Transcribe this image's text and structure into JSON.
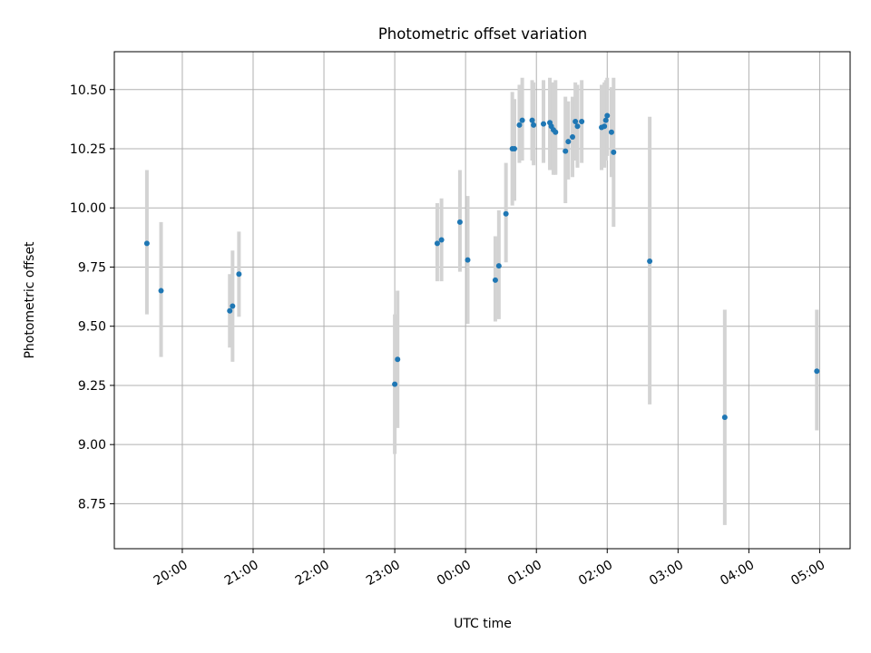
{
  "chart_data": {
    "type": "scatter",
    "title": "Photometric offset variation",
    "xlabel": "UTC time",
    "ylabel": "Photometric offset",
    "x_unit": "hours after 00:00 UTC (negative = previous day)",
    "xlim": [
      -4.96,
      5.43
    ],
    "ylim": [
      8.56,
      10.66
    ],
    "grid": true,
    "x_ticks": [
      {
        "value": -4,
        "label": "20:00"
      },
      {
        "value": -3,
        "label": "21:00"
      },
      {
        "value": -2,
        "label": "22:00"
      },
      {
        "value": -1,
        "label": "23:00"
      },
      {
        "value": 0,
        "label": "00:00"
      },
      {
        "value": 1,
        "label": "01:00"
      },
      {
        "value": 2,
        "label": "02:00"
      },
      {
        "value": 3,
        "label": "03:00"
      },
      {
        "value": 4,
        "label": "04:00"
      },
      {
        "value": 5,
        "label": "05:00"
      }
    ],
    "y_ticks": [
      {
        "value": 8.75,
        "label": "8.75"
      },
      {
        "value": 9.0,
        "label": "9.00"
      },
      {
        "value": 9.25,
        "label": "9.25"
      },
      {
        "value": 9.5,
        "label": "9.50"
      },
      {
        "value": 9.75,
        "label": "9.75"
      },
      {
        "value": 10.0,
        "label": "10.00"
      },
      {
        "value": 10.25,
        "label": "10.25"
      },
      {
        "value": 10.5,
        "label": "10.50"
      }
    ],
    "colors": {
      "marker": "#1f77b4",
      "errorbar": "#d3d3d3",
      "grid": "#b0b0b0",
      "axes": "#000000"
    },
    "series": [
      {
        "name": "Photometric offset",
        "points": [
          {
            "x": -4.5,
            "y": 9.85,
            "ylo": 9.55,
            "yhi": 10.16
          },
          {
            "x": -4.3,
            "y": 9.65,
            "ylo": 9.37,
            "yhi": 9.94
          },
          {
            "x": -3.33,
            "y": 9.565,
            "ylo": 9.41,
            "yhi": 9.72
          },
          {
            "x": -3.29,
            "y": 9.585,
            "ylo": 9.35,
            "yhi": 9.82
          },
          {
            "x": -3.2,
            "y": 9.72,
            "ylo": 9.54,
            "yhi": 9.9
          },
          {
            "x": -1.0,
            "y": 9.255,
            "ylo": 8.96,
            "yhi": 9.55
          },
          {
            "x": -0.96,
            "y": 9.36,
            "ylo": 9.07,
            "yhi": 9.65
          },
          {
            "x": -0.4,
            "y": 9.85,
            "ylo": 9.69,
            "yhi": 10.02
          },
          {
            "x": -0.34,
            "y": 9.865,
            "ylo": 9.69,
            "yhi": 10.04
          },
          {
            "x": -0.08,
            "y": 9.94,
            "ylo": 9.73,
            "yhi": 10.16
          },
          {
            "x": 0.03,
            "y": 9.78,
            "ylo": 9.51,
            "yhi": 10.05
          },
          {
            "x": 0.42,
            "y": 9.695,
            "ylo": 9.52,
            "yhi": 9.88
          },
          {
            "x": 0.47,
            "y": 9.755,
            "ylo": 9.53,
            "yhi": 9.99
          },
          {
            "x": 0.57,
            "y": 9.975,
            "ylo": 9.77,
            "yhi": 10.19
          },
          {
            "x": 0.66,
            "y": 10.25,
            "ylo": 10.01,
            "yhi": 10.49
          },
          {
            "x": 0.69,
            "y": 10.25,
            "ylo": 10.03,
            "yhi": 10.46
          },
          {
            "x": 0.76,
            "y": 10.35,
            "ylo": 10.19,
            "yhi": 10.52
          },
          {
            "x": 0.8,
            "y": 10.37,
            "ylo": 10.2,
            "yhi": 10.55
          },
          {
            "x": 0.94,
            "y": 10.37,
            "ylo": 10.2,
            "yhi": 10.54
          },
          {
            "x": 0.96,
            "y": 10.35,
            "ylo": 10.18,
            "yhi": 10.53
          },
          {
            "x": 1.1,
            "y": 10.355,
            "ylo": 10.19,
            "yhi": 10.54
          },
          {
            "x": 1.19,
            "y": 10.36,
            "ylo": 10.16,
            "yhi": 10.55
          },
          {
            "x": 1.21,
            "y": 10.345,
            "ylo": 10.16,
            "yhi": 10.53
          },
          {
            "x": 1.24,
            "y": 10.33,
            "ylo": 10.14,
            "yhi": 10.53
          },
          {
            "x": 1.27,
            "y": 10.32,
            "ylo": 10.14,
            "yhi": 10.54
          },
          {
            "x": 1.41,
            "y": 10.24,
            "ylo": 10.02,
            "yhi": 10.47
          },
          {
            "x": 1.45,
            "y": 10.28,
            "ylo": 10.12,
            "yhi": 10.45
          },
          {
            "x": 1.51,
            "y": 10.3,
            "ylo": 10.13,
            "yhi": 10.47
          },
          {
            "x": 1.55,
            "y": 10.365,
            "ylo": 10.2,
            "yhi": 10.53
          },
          {
            "x": 1.58,
            "y": 10.345,
            "ylo": 10.17,
            "yhi": 10.52
          },
          {
            "x": 1.64,
            "y": 10.365,
            "ylo": 10.19,
            "yhi": 10.54
          },
          {
            "x": 1.92,
            "y": 10.34,
            "ylo": 10.16,
            "yhi": 10.52
          },
          {
            "x": 1.96,
            "y": 10.345,
            "ylo": 10.17,
            "yhi": 10.53
          },
          {
            "x": 1.98,
            "y": 10.37,
            "ylo": 10.2,
            "yhi": 10.54
          },
          {
            "x": 2.0,
            "y": 10.39,
            "ylo": 10.22,
            "yhi": 10.55
          },
          {
            "x": 2.06,
            "y": 10.32,
            "ylo": 10.13,
            "yhi": 10.51
          },
          {
            "x": 2.09,
            "y": 10.235,
            "ylo": 9.92,
            "yhi": 10.55
          },
          {
            "x": 2.6,
            "y": 9.775,
            "ylo": 9.17,
            "yhi": 10.385
          },
          {
            "x": 3.66,
            "y": 9.115,
            "ylo": 8.66,
            "yhi": 9.57
          },
          {
            "x": 4.96,
            "y": 9.31,
            "ylo": 9.06,
            "yhi": 9.57
          }
        ]
      }
    ]
  }
}
